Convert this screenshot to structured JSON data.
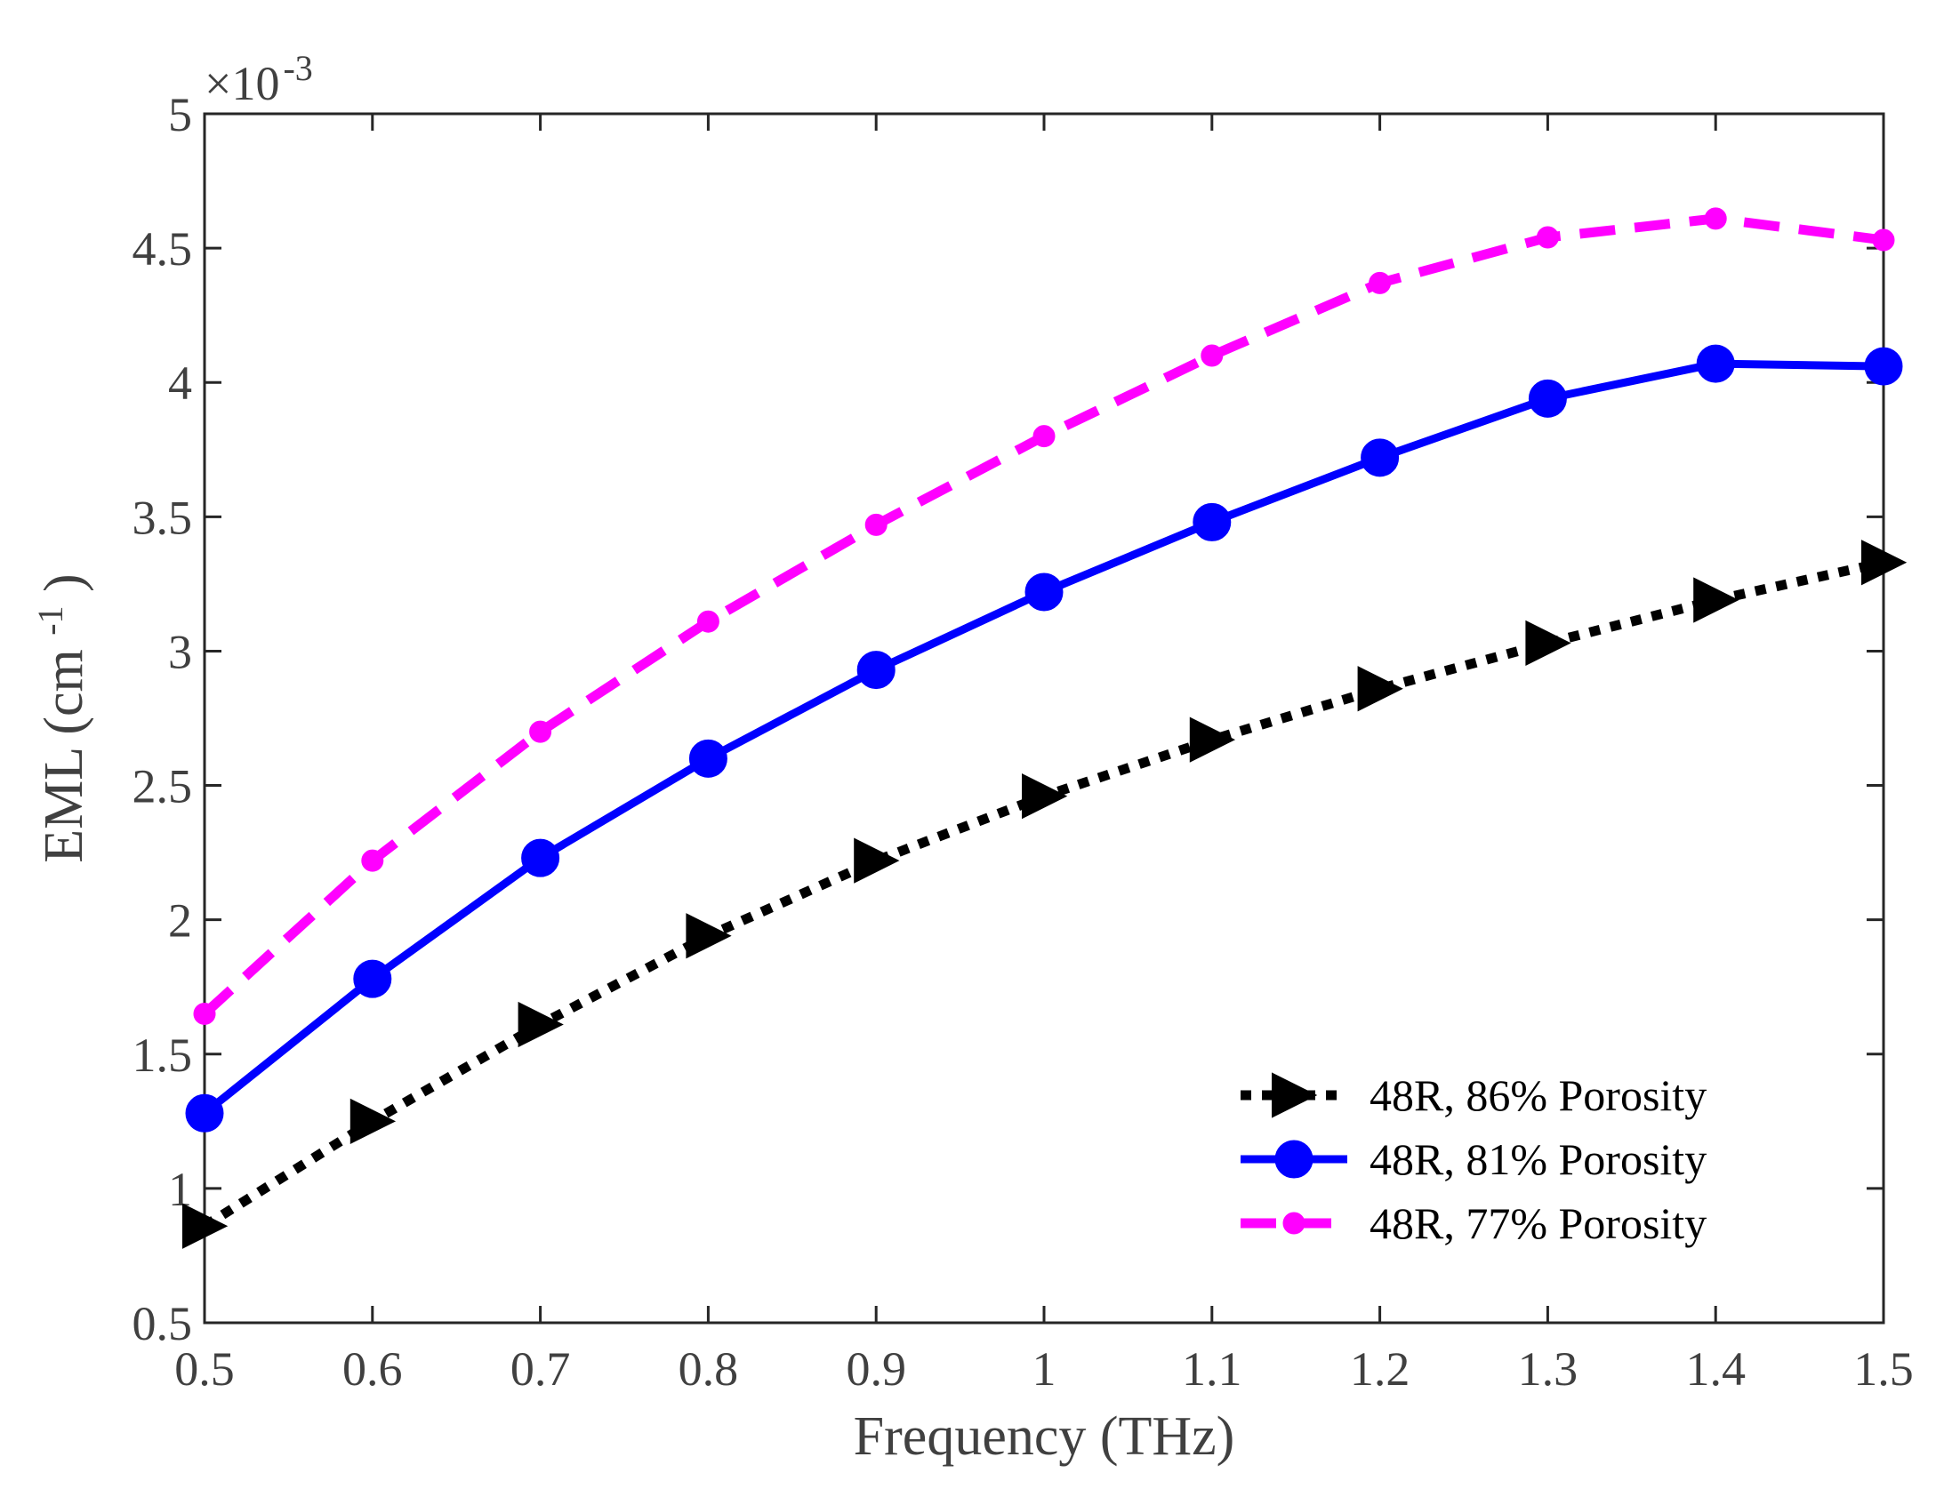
{
  "chart_data": {
    "type": "line",
    "title": "",
    "xlabel": "Frequency (THz)",
    "ylabel_main": "EML (cm",
    "ylabel_sup": "-1",
    "ylabel_close": ")",
    "y_multiplier_base": "×10",
    "y_multiplier_exp": "-3",
    "x": [
      0.5,
      0.6,
      0.7,
      0.8,
      0.9,
      1.0,
      1.1,
      1.2,
      1.3,
      1.4,
      1.5
    ],
    "xlim": [
      0.5,
      1.5
    ],
    "ylim": [
      0.5,
      5
    ],
    "x_ticks": [
      0.5,
      0.6,
      0.7,
      0.8,
      0.9,
      1.0,
      1.1,
      1.2,
      1.3,
      1.4,
      1.5
    ],
    "x_tick_labels": [
      "0.5",
      "0.6",
      "0.7",
      "0.8",
      "0.9",
      "1",
      "1.1",
      "1.2",
      "1.3",
      "1.4",
      "1.5"
    ],
    "y_ticks": [
      0.5,
      1,
      1.5,
      2,
      2.5,
      3,
      3.5,
      4,
      4.5,
      5
    ],
    "y_tick_labels": [
      "0.5",
      "1",
      "1.5",
      "2",
      "2.5",
      "3",
      "3.5",
      "4",
      "4.5",
      "5"
    ],
    "grid": false,
    "legend_position": "bottom-right",
    "series": [
      {
        "name": "48R, 86% Porosity",
        "values": [
          0.86,
          1.25,
          1.61,
          1.94,
          2.22,
          2.46,
          2.67,
          2.86,
          3.03,
          3.19,
          3.33
        ],
        "color": "#000000",
        "line_style": "dotted",
        "marker": "triangle-right"
      },
      {
        "name": "48R, 81% Porosity",
        "values": [
          1.28,
          1.78,
          2.23,
          2.6,
          2.93,
          3.22,
          3.48,
          3.72,
          3.94,
          4.07,
          4.06
        ],
        "color": "#0000ff",
        "line_style": "solid",
        "marker": "circle"
      },
      {
        "name": "48R, 77% Porosity",
        "values": [
          1.65,
          2.22,
          2.7,
          3.11,
          3.47,
          3.8,
          4.1,
          4.37,
          4.54,
          4.61,
          4.53
        ],
        "color": "#ff00ff",
        "line_style": "dashed",
        "marker": "circle-small"
      }
    ]
  }
}
